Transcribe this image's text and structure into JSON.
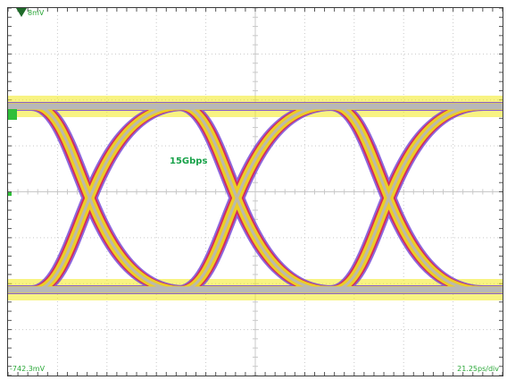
{
  "scope": {
    "top_level_readout": "8mV",
    "bottom_left_readout": "-742.3mV",
    "bottom_right_readout": "21.25ps/div",
    "signal_label": "15Gbps"
  },
  "colors": {
    "background": "#ffffff",
    "grid": "#c9c9c9",
    "readout_text": "#2aa838",
    "eye_outer": "#e0204a",
    "eye_noise": "#7a4cd8",
    "eye_main": "#f2ea1c",
    "eye_core": "#b8b8b8",
    "marker": "#1f6b2a"
  },
  "icons": {
    "trigger_marker": "trigger-arrow-icon",
    "channel_marker": "channel-level-icon"
  }
}
